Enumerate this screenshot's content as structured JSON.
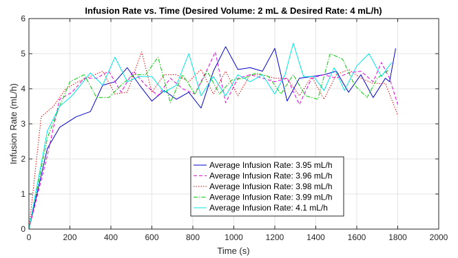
{
  "chart_data": {
    "type": "line",
    "title": "Infusion Rate vs. Time (Desired Volume: 2 mL & Desired Rate: 4 mL/h)",
    "xlabel": "Time (s)",
    "ylabel": "Infusion Rate (mL/h)",
    "xlim": [
      0,
      2000
    ],
    "ylim": [
      0,
      6
    ],
    "xticks": [
      0,
      200,
      400,
      600,
      800,
      1000,
      1200,
      1400,
      1600,
      1800,
      2000
    ],
    "yticks": [
      0,
      1,
      2,
      3,
      4,
      5,
      6
    ],
    "grid": true,
    "legend_position": "bottom-center",
    "series": [
      {
        "name": "Average Infusion Rate: 3.95 mL/h",
        "color": "#0000cc",
        "dash": "solid",
        "x": [
          0,
          90,
          150,
          230,
          300,
          360,
          420,
          480,
          540,
          600,
          660,
          720,
          780,
          840,
          900,
          960,
          1020,
          1080,
          1140,
          1200,
          1260,
          1320,
          1380,
          1440,
          1500,
          1560,
          1620,
          1680,
          1740,
          1760,
          1790
        ],
        "y": [
          0,
          2.3,
          2.9,
          3.2,
          3.35,
          4.1,
          4.2,
          4.6,
          4.1,
          3.65,
          3.95,
          3.7,
          3.9,
          3.45,
          4.5,
          5.2,
          4.55,
          4.6,
          4.5,
          5.15,
          3.65,
          4.3,
          4.35,
          4.4,
          4.5,
          3.9,
          4.4,
          3.75,
          4.3,
          4.2,
          5.15
        ]
      },
      {
        "name": "Average Infusion Rate: 3.96 mL/h",
        "color": "#e600e6",
        "dash": "dashed",
        "x": [
          0,
          90,
          150,
          210,
          270,
          330,
          390,
          450,
          510,
          570,
          630,
          690,
          750,
          810,
          870,
          910,
          960,
          1020,
          1080,
          1140,
          1200,
          1260,
          1320,
          1380,
          1440,
          1500,
          1560,
          1620,
          1680,
          1720,
          1760,
          1800
        ],
        "y": [
          0,
          2.1,
          3.7,
          3.9,
          4.3,
          4.3,
          4.5,
          3.9,
          4.5,
          4.1,
          3.8,
          4.3,
          4.0,
          3.85,
          4.55,
          5.05,
          3.6,
          4.3,
          4.4,
          4.3,
          4.2,
          4.3,
          3.55,
          4.3,
          4.4,
          4.3,
          4.45,
          4.5,
          4.2,
          4.75,
          4.3,
          3.55
        ]
      },
      {
        "name": "Average Infusion Rate: 3.98 mL/h",
        "color": "#e60000",
        "dash": "dotted",
        "x": [
          0,
          60,
          120,
          180,
          240,
          300,
          360,
          420,
          480,
          550,
          600,
          660,
          720,
          780,
          840,
          900,
          960,
          1020,
          1080,
          1140,
          1200,
          1260,
          1320,
          1380,
          1440,
          1500,
          1560,
          1620,
          1680,
          1740,
          1800
        ],
        "y": [
          0,
          3.2,
          3.5,
          4.0,
          4.2,
          4.35,
          4.5,
          3.85,
          3.9,
          5.05,
          3.9,
          4.4,
          4.4,
          4.2,
          4.55,
          3.85,
          4.5,
          3.8,
          4.4,
          4.4,
          4.3,
          4.3,
          3.8,
          4.35,
          3.7,
          4.4,
          4.55,
          4.3,
          4.15,
          4.15,
          3.25
        ]
      },
      {
        "name": "Average Infusion Rate: 3.99 mL/h",
        "color": "#00cc00",
        "dash": "dashdot",
        "x": [
          0,
          90,
          150,
          200,
          270,
          330,
          390,
          450,
          510,
          570,
          630,
          690,
          750,
          810,
          870,
          930,
          990,
          1050,
          1110,
          1170,
          1230,
          1290,
          1350,
          1410,
          1470,
          1530,
          1590,
          1650,
          1700,
          1760
        ],
        "y": [
          0,
          2.6,
          3.5,
          4.2,
          4.4,
          3.75,
          3.75,
          4.1,
          4.4,
          4.4,
          4.9,
          3.6,
          4.4,
          3.85,
          4.5,
          3.85,
          4.25,
          4.3,
          4.45,
          4.35,
          3.85,
          4.4,
          3.8,
          3.7,
          5.0,
          4.85,
          4.1,
          3.75,
          4.3,
          4.55
        ]
      },
      {
        "name": "Average Infusion Rate: 4.1 mL/h",
        "color": "#00e6e6",
        "dash": "solid",
        "x": [
          0,
          90,
          150,
          210,
          300,
          360,
          420,
          480,
          540,
          600,
          660,
          720,
          780,
          840,
          900,
          960,
          1020,
          1080,
          1140,
          1200,
          1250,
          1290,
          1340,
          1390,
          1440,
          1490,
          1540,
          1600,
          1660,
          1720,
          1770
        ],
        "y": [
          0,
          2.8,
          3.5,
          3.8,
          4.45,
          4.1,
          4.9,
          4.2,
          4.35,
          4.35,
          3.9,
          4.1,
          5.0,
          3.8,
          4.35,
          3.8,
          4.4,
          4.2,
          4.4,
          3.85,
          4.4,
          5.3,
          4.35,
          4.35,
          3.95,
          4.6,
          3.95,
          4.65,
          5.0,
          4.35,
          4.75
        ]
      }
    ]
  }
}
